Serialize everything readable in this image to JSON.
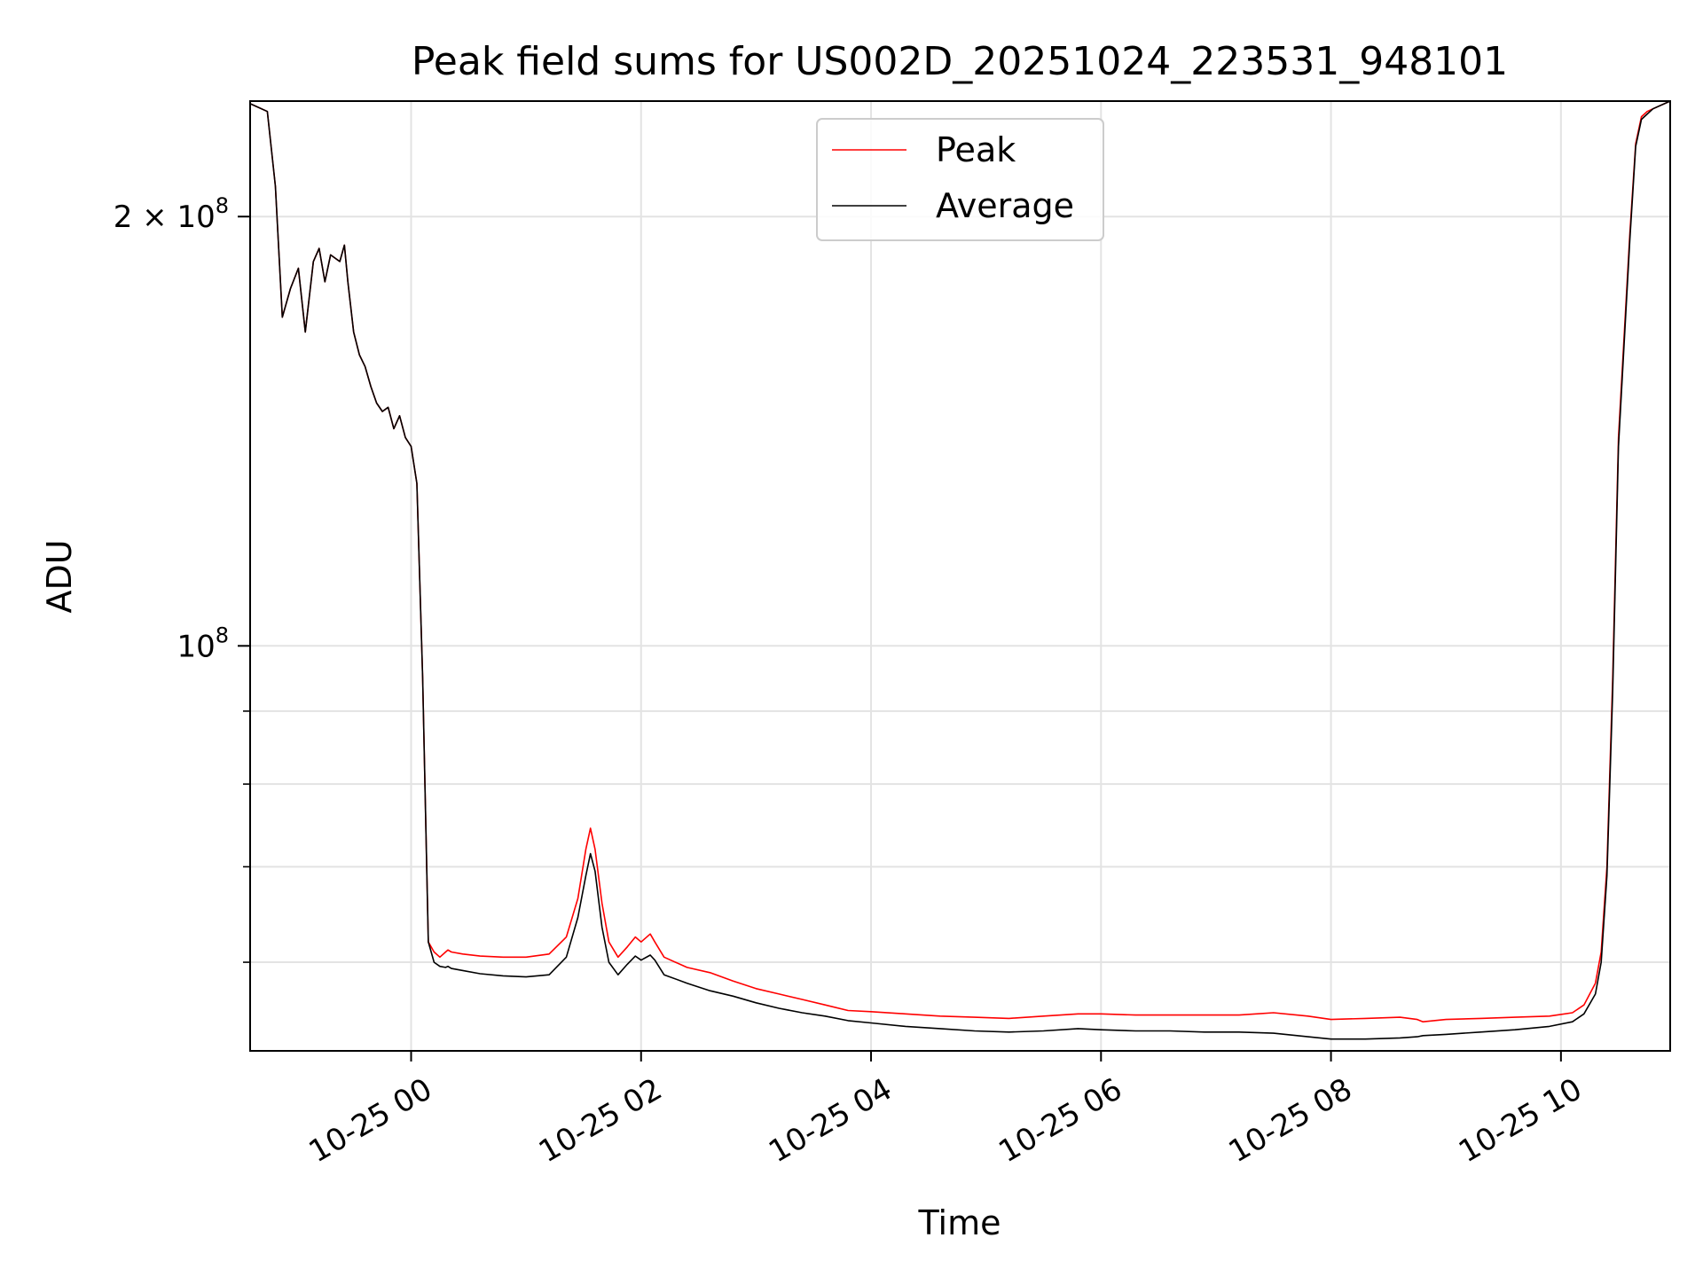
{
  "chart_data": {
    "type": "line",
    "title": "Peak field sums for US002D_20251024_223531_948101",
    "xlabel": "Time",
    "ylabel": "ADU",
    "yscale": "log",
    "xlim": [
      -1.4,
      10.95
    ],
    "ylim": [
      52000000,
      241000000
    ],
    "grid": true,
    "legend_position": "top-center",
    "x_unit": "hours relative to 10-25 00:00",
    "xticks": [
      {
        "value": 0,
        "label": "10-25 00"
      },
      {
        "value": 2,
        "label": "10-25 02"
      },
      {
        "value": 4,
        "label": "10-25 04"
      },
      {
        "value": 6,
        "label": "10-25 06"
      },
      {
        "value": 8,
        "label": "10-25 08"
      },
      {
        "value": 10,
        "label": "10-25 10"
      }
    ],
    "yticks_major": [
      {
        "value": 100000000,
        "base": "10",
        "exp": "8",
        "coef": ""
      },
      {
        "value": 200000000,
        "base": "10",
        "exp": "8",
        "coef": "2 × "
      }
    ],
    "yticks_minor": [
      60000000,
      70000000,
      80000000,
      90000000
    ],
    "series": [
      {
        "name": "Peak",
        "color": "#ff0000",
        "x": [
          -1.4,
          -1.25,
          -1.18,
          -1.12,
          -1.05,
          -0.98,
          -0.92,
          -0.85,
          -0.8,
          -0.75,
          -0.7,
          -0.62,
          -0.58,
          -0.55,
          -0.5,
          -0.45,
          -0.4,
          -0.35,
          -0.3,
          -0.25,
          -0.2,
          -0.15,
          -0.1,
          -0.05,
          0.0,
          0.05,
          0.1,
          0.15,
          0.2,
          0.25,
          0.3,
          0.32,
          0.35,
          0.45,
          0.6,
          0.8,
          1.0,
          1.2,
          1.35,
          1.45,
          1.52,
          1.56,
          1.6,
          1.66,
          1.72,
          1.8,
          1.88,
          1.95,
          2.0,
          2.08,
          2.12,
          2.2,
          2.4,
          2.6,
          2.8,
          3.0,
          3.2,
          3.4,
          3.6,
          3.8,
          4.0,
          4.3,
          4.6,
          4.9,
          5.2,
          5.5,
          5.8,
          6.0,
          6.3,
          6.6,
          6.9,
          7.2,
          7.5,
          7.8,
          8.0,
          8.3,
          8.6,
          8.75,
          8.8,
          9.0,
          9.3,
          9.6,
          9.9,
          10.1,
          10.2,
          10.3,
          10.35,
          10.4,
          10.45,
          10.5,
          10.55,
          10.6,
          10.65,
          10.7,
          10.75,
          10.8,
          10.95
        ],
        "values": [
          240000000,
          237000000,
          210000000,
          170000000,
          178000000,
          184000000,
          166000000,
          186000000,
          190000000,
          180000000,
          188000000,
          186000000,
          191000000,
          180000000,
          166000000,
          160000000,
          157000000,
          152000000,
          148000000,
          146000000,
          147000000,
          142000000,
          145000000,
          140000000,
          138000000,
          130000000,
          95000000,
          62000000,
          61000000,
          60500000,
          61000000,
          61200000,
          61000000,
          60800000,
          60600000,
          60500000,
          60500000,
          60800000,
          62500000,
          66500000,
          72000000,
          74500000,
          72000000,
          66000000,
          62000000,
          60500000,
          61500000,
          62500000,
          62000000,
          62800000,
          62000000,
          60500000,
          59500000,
          59000000,
          58200000,
          57500000,
          57000000,
          56500000,
          56000000,
          55500000,
          55400000,
          55200000,
          55000000,
          54900000,
          54800000,
          55000000,
          55200000,
          55200000,
          55100000,
          55100000,
          55100000,
          55100000,
          55300000,
          55000000,
          54700000,
          54800000,
          54900000,
          54700000,
          54500000,
          54700000,
          54800000,
          54900000,
          55000000,
          55300000,
          56000000,
          58000000,
          61000000,
          70000000,
          95000000,
          140000000,
          165000000,
          195000000,
          225000000,
          235000000,
          237000000,
          238000000,
          241000000
        ]
      },
      {
        "name": "Average",
        "color": "#000000",
        "x": [
          -1.4,
          -1.25,
          -1.18,
          -1.12,
          -1.05,
          -0.98,
          -0.92,
          -0.85,
          -0.8,
          -0.75,
          -0.7,
          -0.62,
          -0.58,
          -0.55,
          -0.5,
          -0.45,
          -0.4,
          -0.35,
          -0.3,
          -0.25,
          -0.2,
          -0.15,
          -0.1,
          -0.05,
          0.0,
          0.05,
          0.1,
          0.15,
          0.2,
          0.25,
          0.3,
          0.32,
          0.35,
          0.45,
          0.6,
          0.8,
          1.0,
          1.2,
          1.35,
          1.45,
          1.52,
          1.56,
          1.6,
          1.66,
          1.72,
          1.8,
          1.88,
          1.95,
          2.0,
          2.08,
          2.12,
          2.2,
          2.4,
          2.6,
          2.8,
          3.0,
          3.2,
          3.4,
          3.6,
          3.8,
          4.0,
          4.3,
          4.6,
          4.9,
          5.2,
          5.5,
          5.8,
          6.0,
          6.3,
          6.6,
          6.9,
          7.2,
          7.5,
          7.8,
          8.0,
          8.3,
          8.6,
          8.75,
          8.8,
          9.0,
          9.3,
          9.6,
          9.9,
          10.1,
          10.2,
          10.3,
          10.35,
          10.4,
          10.45,
          10.5,
          10.55,
          10.6,
          10.65,
          10.7,
          10.75,
          10.8,
          10.95
        ],
        "values": [
          240000000,
          237000000,
          210000000,
          170000000,
          178000000,
          184000000,
          166000000,
          186000000,
          190000000,
          180000000,
          188000000,
          186000000,
          191000000,
          180000000,
          166000000,
          160000000,
          157000000,
          152000000,
          148000000,
          146000000,
          147000000,
          142000000,
          145000000,
          140000000,
          138000000,
          130000000,
          95000000,
          62000000,
          60000000,
          59600000,
          59500000,
          59600000,
          59400000,
          59200000,
          58900000,
          58700000,
          58600000,
          58800000,
          60500000,
          64500000,
          69000000,
          71500000,
          69500000,
          63500000,
          60000000,
          58800000,
          59800000,
          60600000,
          60200000,
          60700000,
          60200000,
          58800000,
          58000000,
          57300000,
          56800000,
          56200000,
          55700000,
          55300000,
          55000000,
          54600000,
          54400000,
          54100000,
          53900000,
          53700000,
          53600000,
          53700000,
          53900000,
          53800000,
          53700000,
          53700000,
          53600000,
          53600000,
          53500000,
          53200000,
          53000000,
          53000000,
          53100000,
          53200000,
          53300000,
          53400000,
          53600000,
          53800000,
          54100000,
          54500000,
          55200000,
          57000000,
          60000000,
          69000000,
          93000000,
          138000000,
          163000000,
          193000000,
          224000000,
          234000000,
          236000000,
          238000000,
          241000000
        ]
      }
    ]
  }
}
